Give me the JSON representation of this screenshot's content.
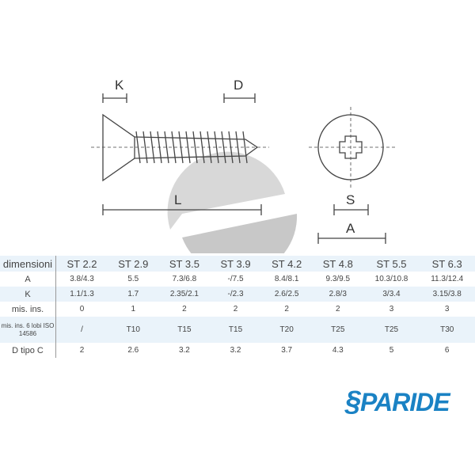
{
  "drawing": {
    "labels": {
      "k": "K",
      "d": "D",
      "l": "L",
      "s": "S",
      "a": "A"
    }
  },
  "table": {
    "header": [
      "dimensioni",
      "ST 2.2",
      "ST 2.9",
      "ST 3.5",
      "ST 3.9",
      "ST 4.2",
      "ST 4.8",
      "ST 5.5",
      "ST 6.3"
    ],
    "rows": [
      [
        "A",
        "3.8/4.3",
        "5.5",
        "7.3/6.8",
        "-/7.5",
        "8.4/8.1",
        "9.3/9.5",
        "10.3/10.8",
        "11.3/12.4"
      ],
      [
        "K",
        "1.1/1.3",
        "1.7",
        "2.35/2.1",
        "-/2.3",
        "2.6/2.5",
        "2.8/3",
        "3/3.4",
        "3.15/3.8"
      ],
      [
        "mis. ins.",
        "0",
        "1",
        "2",
        "2",
        "2",
        "2",
        "3",
        "3"
      ],
      [
        "mis. ins. 6 lobi ISO 14586",
        "/",
        "T10",
        "T15",
        "T15",
        "T20",
        "T25",
        "T25",
        "T30"
      ],
      [
        "D tipo C",
        "2",
        "2.6",
        "3.2",
        "3.2",
        "3.7",
        "4.3",
        "5",
        "6"
      ]
    ]
  },
  "logo": {
    "text": "PARIDE",
    "color": "#1a82c4"
  }
}
